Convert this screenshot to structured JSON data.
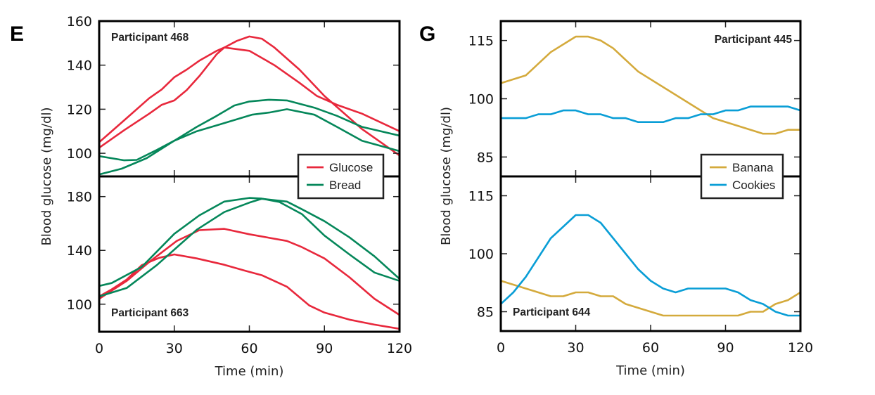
{
  "chart_data": [
    {
      "panel": "E",
      "type": "line",
      "xlabel": "Time (min)",
      "ylabel": "Blood glucose (mg/dl)",
      "x_ticks": [
        0,
        30,
        60,
        90,
        120
      ],
      "xlim": [
        0,
        120
      ],
      "legend": {
        "placement": "bottom-right of upper subplot",
        "entries": [
          {
            "name": "Glucose",
            "color": "#e8283c"
          },
          {
            "name": "Bread",
            "color": "#05875a"
          }
        ]
      },
      "subplots": [
        {
          "title": "Participant 468",
          "title_placement": "top-left",
          "ylim": [
            89.5,
            160
          ],
          "y_ticks": [
            100,
            120,
            140,
            160
          ],
          "series": [
            {
              "name": "Glucose",
              "color": "#e8283c",
              "x": [
                0,
                10,
                20,
                25,
                30,
                35,
                40,
                47,
                50,
                60,
                70,
                80,
                87,
                95,
                105,
                120
              ],
              "y": [
                105,
                115,
                125,
                129,
                134.5,
                138,
                142,
                146.5,
                148,
                146.5,
                140,
                132,
                126,
                122,
                118,
                110
              ]
            },
            {
              "name": "Glucose",
              "color": "#e8283c",
              "x": [
                0,
                10,
                20,
                25,
                30,
                35,
                40,
                47,
                50,
                55,
                60,
                65,
                70,
                80,
                90,
                105,
                120
              ],
              "y": [
                102.5,
                110.5,
                118,
                122,
                124,
                128.7,
                135,
                145,
                148,
                151,
                153,
                152,
                148,
                138,
                126,
                111,
                99
              ]
            },
            {
              "name": "Bread",
              "color": "#05875a",
              "x": [
                0,
                10,
                15,
                23,
                30,
                39,
                47,
                54,
                60,
                68,
                75,
                86,
                95,
                105,
                120
              ],
              "y": [
                98.7,
                96.8,
                97,
                101.5,
                105.7,
                112,
                117,
                121.7,
                123.5,
                124.3,
                124,
                120.7,
                117,
                112,
                108
              ]
            },
            {
              "name": "Bread",
              "color": "#05875a",
              "x": [
                0,
                9,
                19,
                30,
                39,
                48,
                61,
                68,
                75,
                86,
                95,
                105,
                120
              ],
              "y": [
                90.4,
                93,
                97.8,
                105.7,
                110,
                113,
                117.5,
                118.5,
                120,
                117.5,
                112,
                105.7,
                101
              ]
            }
          ]
        },
        {
          "title": "Participant 663",
          "title_placement": "bottom-left",
          "ylim": [
            79.5,
            195
          ],
          "y_ticks": [
            100,
            140,
            180
          ],
          "series": [
            {
              "name": "Glucose",
              "color": "#e8283c",
              "x": [
                0,
                5,
                11,
                17,
                24,
                30,
                39,
                50,
                58,
                65,
                75,
                84,
                90,
                100,
                110,
                120
              ],
              "y": [
                105.8,
                111,
                118.3,
                129,
                134.5,
                137,
                134,
                129.3,
                125,
                121.5,
                113,
                99,
                93.7,
                88.5,
                84.8,
                81.7
              ]
            },
            {
              "name": "Glucose",
              "color": "#e8283c",
              "x": [
                0,
                11,
                20,
                31,
                40,
                50,
                60,
                75,
                81,
                90,
                100,
                110,
                120
              ],
              "y": [
                104,
                117.3,
                131.4,
                147,
                155,
                156,
                152,
                147,
                142.4,
                134,
                120,
                104,
                92
              ]
            },
            {
              "name": "Bread",
              "color": "#05875a",
              "x": [
                0,
                5,
                17,
                30,
                40,
                50,
                60,
                65,
                72,
                81,
                90,
                100,
                110,
                120
              ],
              "y": [
                113.6,
                115.7,
                127.7,
                152.3,
                166,
                176.3,
                179,
                178.5,
                176,
                167,
                151,
                137,
                123.5,
                117.3
              ]
            },
            {
              "name": "Bread",
              "color": "#05875a",
              "x": [
                0,
                11,
                23,
                39,
                50,
                60,
                65,
                75,
                81,
                90,
                100,
                110,
                120
              ],
              "y": [
                105.8,
                112,
                129,
                155.4,
                168.5,
                175.5,
                178.4,
                176.3,
                170.6,
                161.7,
                149.7,
                135.6,
                118.8
              ]
            }
          ]
        }
      ]
    },
    {
      "panel": "G",
      "type": "line",
      "xlabel": "Time (min)",
      "ylabel": "Blood glucose (mg/dl)",
      "x_ticks": [
        0,
        30,
        60,
        90,
        120
      ],
      "xlim": [
        0,
        120
      ],
      "legend": {
        "placement": "bottom-right of upper subplot",
        "entries": [
          {
            "name": "Banana",
            "color": "#d4aa3c"
          },
          {
            "name": "Cookies",
            "color": "#0a9ed6"
          }
        ]
      },
      "subplots": [
        {
          "title": "Participant 445",
          "title_placement": "top-right",
          "ylim": [
            80,
            120
          ],
          "y_ticks": [
            85,
            100,
            115
          ],
          "series": [
            {
              "name": "Banana",
              "color": "#d4aa3c",
              "x": [
                0,
                10,
                20,
                30,
                35,
                40,
                45,
                55,
                85,
                105,
                110,
                115,
                120
              ],
              "y": [
                104,
                106,
                112,
                116,
                116,
                115,
                113,
                107,
                95,
                91,
                91,
                92,
                92
              ]
            },
            {
              "name": "Cookies",
              "color": "#0a9ed6",
              "x": [
                0,
                10,
                15,
                20,
                25,
                30,
                35,
                40,
                45,
                50,
                55,
                60,
                65,
                70,
                75,
                80,
                85,
                90,
                95,
                100,
                105,
                110,
                115,
                120
              ],
              "y": [
                95,
                95,
                96,
                96,
                97,
                97,
                96,
                96,
                95,
                95,
                94,
                94,
                94,
                95,
                95,
                96,
                96,
                97,
                97,
                98,
                98,
                98,
                98,
                97
              ]
            }
          ]
        },
        {
          "title": "Participant 644",
          "title_placement": "bottom-left",
          "ylim": [
            80,
            120
          ],
          "y_ticks": [
            85,
            100,
            115
          ],
          "series": [
            {
              "name": "Banana",
              "color": "#d4aa3c",
              "x": [
                0,
                5,
                10,
                15,
                20,
                25,
                30,
                35,
                40,
                45,
                50,
                60,
                65,
                95,
                100,
                105,
                110,
                115,
                120
              ],
              "y": [
                93,
                92,
                91,
                90,
                89,
                89,
                90,
                90,
                89,
                89,
                87,
                85,
                84,
                84,
                85,
                85,
                87,
                88,
                90
              ]
            },
            {
              "name": "Cookies",
              "color": "#0a9ed6",
              "x": [
                0,
                5,
                10,
                15,
                20,
                25,
                30,
                35,
                40,
                45,
                50,
                55,
                60,
                65,
                70,
                75,
                80,
                90,
                95,
                100,
                105,
                110,
                115,
                120
              ],
              "y": [
                87,
                90,
                94,
                99,
                104,
                107,
                110,
                110,
                108,
                104,
                100,
                96,
                93,
                91,
                90,
                91,
                91,
                91,
                90,
                88,
                87,
                85,
                84,
                84
              ]
            }
          ]
        }
      ]
    }
  ]
}
